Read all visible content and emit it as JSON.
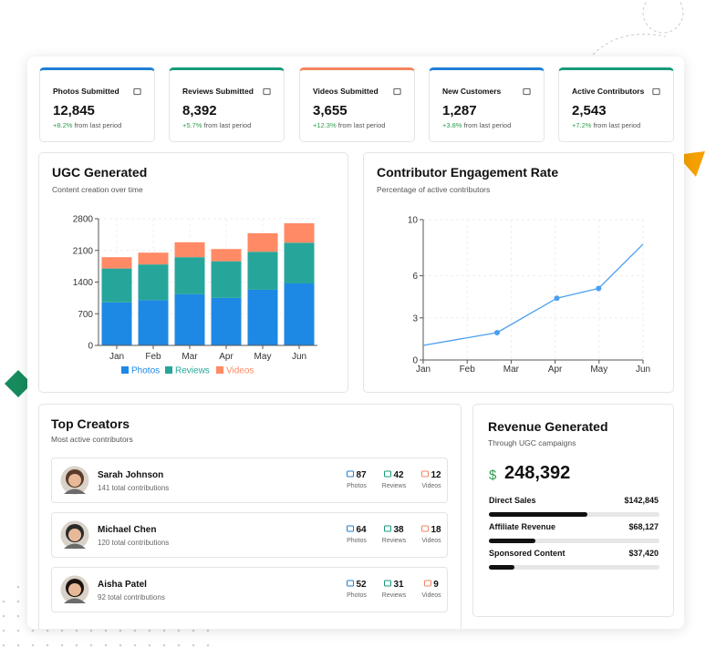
{
  "stats": [
    {
      "title": "Photos Submitted",
      "value": "12,845",
      "change": "+8.2%",
      "period": "from last period",
      "color": "#1e7fd6"
    },
    {
      "title": "Reviews Submitted",
      "value": "8,392",
      "change": "+5.7%",
      "period": "from last period",
      "color": "#179a7a"
    },
    {
      "title": "Videos Submitted",
      "value": "3,655",
      "change": "+12.3%",
      "period": "from last period",
      "color": "#f4845f"
    },
    {
      "title": "New Customers",
      "value": "1,287",
      "change": "+3.8%",
      "period": "from last period",
      "color": "#1e7fd6"
    },
    {
      "title": "Active Contributors",
      "value": "2,543",
      "change": "+7.2%",
      "period": "from last period",
      "color": "#179a7a"
    }
  ],
  "ugc_chart": {
    "type": "stacked_bar",
    "title": "UGC Generated",
    "subtitle": "Content creation over time",
    "categories": [
      "Jan",
      "Feb",
      "Mar",
      "Apr",
      "May",
      "Jun"
    ],
    "series": [
      {
        "name": "Photos",
        "color": "#1e88e5",
        "values": [
          950,
          1000,
          1130,
          1050,
          1230,
          1370
        ]
      },
      {
        "name": "Reviews",
        "color": "#26a69a",
        "values": [
          750,
          790,
          820,
          810,
          840,
          900
        ]
      },
      {
        "name": "Videos",
        "color": "#ff8a65",
        "values": [
          250,
          260,
          330,
          270,
          410,
          430
        ]
      }
    ],
    "ylim": [
      0,
      2800
    ],
    "yticks": [
      0,
      700,
      1400,
      2100,
      2800
    ],
    "grid": true
  },
  "engagement_chart": {
    "type": "line",
    "title": "Contributor Engagement Rate",
    "subtitle": "Percentage of active contributors",
    "x": [
      0,
      1.68,
      3.04,
      3.99,
      5
    ],
    "values": [
      1.04,
      1.95,
      4.4,
      5.1,
      8.25
    ],
    "color": "#4a9ff0",
    "xlim": [
      0,
      5
    ],
    "xticks": [
      {
        "value": 0,
        "label": "Jan"
      },
      {
        "value": 1,
        "label": "Feb"
      },
      {
        "value": 2,
        "label": "Mar"
      },
      {
        "value": 3,
        "label": "Apr"
      },
      {
        "value": 4,
        "label": "May"
      },
      {
        "value": 5,
        "label": "Jun"
      }
    ],
    "ylim": [
      0,
      10
    ],
    "yticks": [
      0,
      3,
      6,
      10
    ],
    "grid": true
  },
  "top_creators": {
    "title": "Top Creators",
    "subtitle": "Most active contributors",
    "metric_labels": [
      "Photos",
      "Reviews",
      "Videos"
    ],
    "rows": [
      {
        "name": "Sarah Johnson",
        "contributions": "141 total contributions",
        "counts": [
          "87",
          "42",
          "12"
        ]
      },
      {
        "name": "Michael Chen",
        "contributions": "120 total contributions",
        "counts": [
          "64",
          "38",
          "18"
        ]
      },
      {
        "name": "Aisha Patel",
        "contributions": "92 total contributions",
        "counts": [
          "52",
          "31",
          "9"
        ]
      }
    ]
  },
  "revenue": {
    "title": "Revenue Generated",
    "subtitle": "Through UGC campaigns",
    "currency": "$",
    "total": {
      "value": 248392,
      "label": "248,392"
    },
    "items": [
      {
        "name": "Direct Sales",
        "value": 142845,
        "label": "$142,845"
      },
      {
        "name": "Affiliate Revenue",
        "value": 68127,
        "label": "$68,127"
      },
      {
        "name": "Sponsored Content",
        "value": 37420,
        "label": "$37,420"
      }
    ]
  }
}
